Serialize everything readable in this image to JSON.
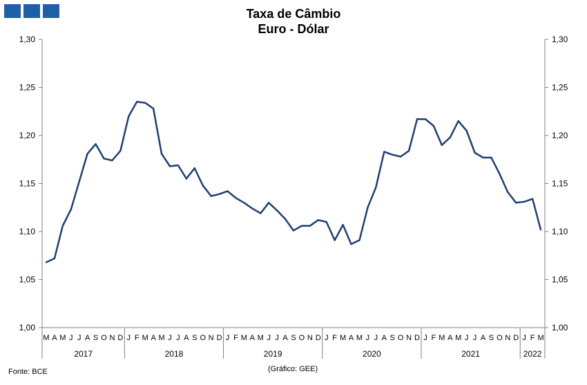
{
  "header": {
    "logo_color": "#1f5fa8",
    "title_line1": "Taxa de Câmbio",
    "title_line2": "Euro - Dólar"
  },
  "footer": {
    "source": "Fonte: BCE",
    "credit": "(Gráfico: GEE)"
  },
  "chart_data": {
    "type": "line",
    "title": "Taxa de Câmbio Euro - Dólar",
    "line_color": "#1f3f6e",
    "ylim": [
      1.0,
      1.3
    ],
    "yticks": [
      "1,00",
      "1,05",
      "1,10",
      "1,15",
      "1,20",
      "1,25",
      "1,30"
    ],
    "grid": false,
    "month_labels": [
      "M",
      "A",
      "M",
      "J",
      "J",
      "A",
      "S",
      "O",
      "N",
      "D",
      "J",
      "F",
      "M",
      "A",
      "M",
      "J",
      "J",
      "A",
      "S",
      "O",
      "N",
      "D",
      "J",
      "F",
      "M",
      "A",
      "M",
      "J",
      "J",
      "A",
      "S",
      "O",
      "N",
      "D",
      "J",
      "F",
      "M",
      "A",
      "M",
      "J",
      "J",
      "A",
      "S",
      "O",
      "N",
      "D",
      "J",
      "F",
      "M",
      "A",
      "M",
      "J",
      "J",
      "A",
      "S",
      "O",
      "N",
      "D",
      "J",
      "F",
      "M"
    ],
    "years": [
      {
        "label": "2017",
        "months": 10
      },
      {
        "label": "2018",
        "months": 12
      },
      {
        "label": "2019",
        "months": 12
      },
      {
        "label": "2020",
        "months": 12
      },
      {
        "label": "2021",
        "months": 12
      },
      {
        "label": "2022",
        "months": 3
      }
    ],
    "series": [
      {
        "values": [
          1.068,
          1.072,
          1.106,
          1.123,
          1.152,
          1.181,
          1.191,
          1.176,
          1.174,
          1.184,
          1.22,
          1.235,
          1.234,
          1.228,
          1.181,
          1.168,
          1.169,
          1.155,
          1.166,
          1.148,
          1.137,
          1.139,
          1.142,
          1.135,
          1.13,
          1.124,
          1.119,
          1.13,
          1.122,
          1.113,
          1.101,
          1.106,
          1.106,
          1.112,
          1.11,
          1.091,
          1.107,
          1.087,
          1.091,
          1.125,
          1.146,
          1.183,
          1.18,
          1.178,
          1.184,
          1.217,
          1.217,
          1.21,
          1.19,
          1.198,
          1.215,
          1.205,
          1.182,
          1.177,
          1.177,
          1.16,
          1.141,
          1.13,
          1.131,
          1.134,
          1.102
        ]
      }
    ]
  }
}
